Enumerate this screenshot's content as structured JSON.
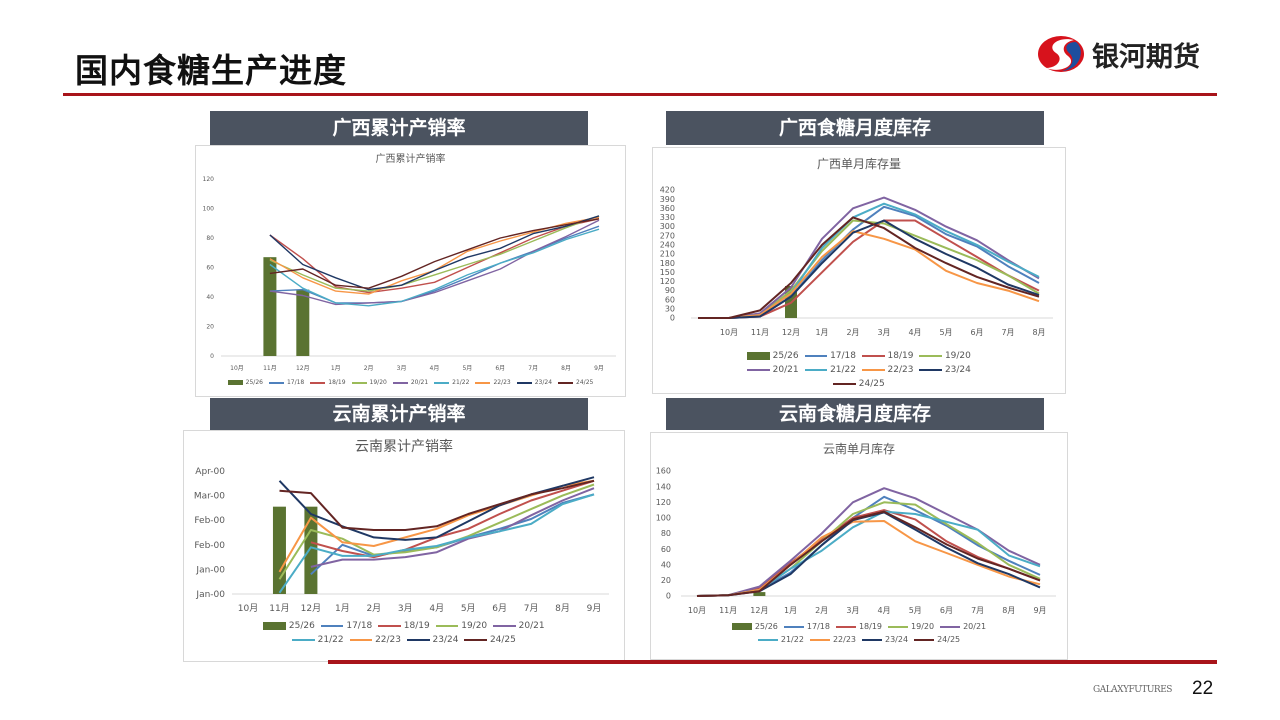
{
  "page": {
    "title": "国内食糖生产进度",
    "logo_text": "银河期货",
    "footer_brand": "GALAXYFUTURES",
    "page_number": "22"
  },
  "sections": [
    {
      "label": "广西累计产销率"
    },
    {
      "label": "广西食糖月度库存"
    },
    {
      "label": "云南累计产销率"
    },
    {
      "label": "云南食糖月度库存"
    }
  ],
  "colors": {
    "brand_red": "#a8141a",
    "header_bg": "#4b5360",
    "25/26": "#5a7331",
    "17/18": "#4f81bd",
    "18/19": "#c0504d",
    "19/20": "#9bbb59",
    "20/21": "#8064a2",
    "21/22": "#4bacc6",
    "22/23": "#f79646",
    "23/24": "#1f3864",
    "24/25": "#632523"
  },
  "chart_data": [
    {
      "type": "line",
      "title": "广西累计产销率",
      "categories": [
        "10月",
        "11月",
        "12月",
        "1月",
        "2月",
        "3月",
        "4月",
        "5月",
        "6月",
        "7月",
        "8月",
        "9月"
      ],
      "ylim": [
        0,
        120
      ],
      "yticks": [
        0,
        20,
        40,
        60,
        80,
        100,
        120
      ],
      "ytick_labels": [
        "0",
        "20",
        "40",
        "60",
        "80",
        "100",
        "120"
      ],
      "legend": "bottom",
      "bar_series": {
        "name": "25/26",
        "values": [
          null,
          67,
          45,
          null,
          null,
          null,
          null,
          null,
          null,
          null,
          null,
          null
        ]
      },
      "series": [
        {
          "name": "17/18",
          "values": [
            null,
            44,
            45,
            36,
            36,
            37,
            44,
            53,
            63,
            71,
            80,
            88
          ]
        },
        {
          "name": "18/19",
          "values": [
            null,
            82,
            66,
            47,
            43,
            46,
            50,
            60,
            70,
            80,
            88,
            93
          ]
        },
        {
          "name": "19/20",
          "values": [
            null,
            65,
            55,
            46,
            44,
            48,
            55,
            62,
            69,
            78,
            87,
            95
          ]
        },
        {
          "name": "20/21",
          "values": [
            null,
            44,
            41,
            35,
            36,
            37,
            43,
            51,
            59,
            71,
            81,
            92
          ]
        },
        {
          "name": "21/22",
          "values": [
            null,
            62,
            46,
            36,
            34,
            37,
            45,
            55,
            63,
            70,
            79,
            86
          ]
        },
        {
          "name": "22/23",
          "values": [
            null,
            66,
            53,
            44,
            42,
            51,
            58,
            71,
            78,
            84,
            90,
            94
          ]
        },
        {
          "name": "23/24",
          "values": [
            null,
            82,
            62,
            53,
            45,
            48,
            58,
            67,
            73,
            83,
            88,
            95
          ]
        },
        {
          "name": "24/25",
          "values": [
            null,
            56,
            59,
            48,
            46,
            54,
            64,
            72,
            80,
            85,
            89,
            93
          ]
        }
      ]
    },
    {
      "type": "line",
      "title": "广西单月库存量",
      "categories": [
        "",
        "10月",
        "11月",
        "12月",
        "1月",
        "2月",
        "3月",
        "4月",
        "5月",
        "6月",
        "7月",
        "8月"
      ],
      "ylim": [
        0,
        420
      ],
      "yticks": [
        0,
        30,
        60,
        90,
        120,
        150,
        180,
        210,
        240,
        270,
        300,
        330,
        360,
        390,
        420
      ],
      "ytick_labels": [
        "0",
        "30",
        "60",
        "90",
        "120",
        "150",
        "180",
        "210",
        "240",
        "270",
        "300",
        "330",
        "360",
        "390",
        "420"
      ],
      "legend": "bottom",
      "bar_series": {
        "name": "25/26",
        "values": [
          null,
          null,
          null,
          105,
          null,
          null,
          null,
          null,
          null,
          null,
          null,
          null
        ]
      },
      "series": [
        {
          "name": "17/18",
          "values": [
            0,
            0,
            5,
            70,
            190,
            290,
            365,
            335,
            275,
            235,
            170,
            115
          ]
        },
        {
          "name": "18/19",
          "values": [
            0,
            0,
            5,
            50,
            150,
            250,
            320,
            320,
            260,
            200,
            140,
            90
          ]
        },
        {
          "name": "19/20",
          "values": [
            0,
            0,
            10,
            90,
            220,
            320,
            310,
            270,
            230,
            190,
            140,
            80
          ]
        },
        {
          "name": "20/21",
          "values": [
            0,
            0,
            15,
            100,
            260,
            360,
            395,
            355,
            300,
            255,
            190,
            130
          ]
        },
        {
          "name": "21/22",
          "values": [
            0,
            0,
            10,
            80,
            230,
            330,
            375,
            340,
            285,
            240,
            185,
            135
          ]
        },
        {
          "name": "22/23",
          "values": [
            0,
            0,
            10,
            80,
            200,
            285,
            260,
            225,
            155,
            115,
            90,
            55
          ]
        },
        {
          "name": "23/24",
          "values": [
            0,
            0,
            5,
            70,
            180,
            280,
            320,
            260,
            210,
            165,
            110,
            75
          ]
        },
        {
          "name": "24/25",
          "values": [
            0,
            0,
            25,
            115,
            240,
            330,
            295,
            230,
            180,
            135,
            100,
            70
          ]
        }
      ]
    },
    {
      "type": "line",
      "title": "云南累计产销率",
      "categories": [
        "10月",
        "11月",
        "12月",
        "1月",
        "2月",
        "3月",
        "4月",
        "5月",
        "6月",
        "7月",
        "8月",
        "9月"
      ],
      "ylim": [
        0,
        100
      ],
      "yticks": [
        0,
        20,
        40,
        60,
        80,
        100
      ],
      "ytick_labels": [
        "Jan-00",
        "Jan-00",
        "Feb-00",
        "Feb-00",
        "Mar-00",
        "Apr-00"
      ],
      "legend": "bottom",
      "bar_series": {
        "name": "25/26",
        "values": [
          null,
          71,
          71,
          null,
          null,
          null,
          null,
          null,
          null,
          null,
          null,
          null
        ]
      },
      "series": [
        {
          "name": "17/18",
          "values": [
            null,
            null,
            16,
            40,
            31,
            35,
            38,
            46,
            53,
            61,
            74,
            81
          ]
        },
        {
          "name": "18/19",
          "values": [
            null,
            null,
            42,
            35,
            30,
            36,
            46,
            53,
            65,
            76,
            84,
            92
          ]
        },
        {
          "name": "19/20",
          "values": [
            null,
            12,
            52,
            45,
            32,
            34,
            38,
            47,
            58,
            69,
            80,
            89
          ]
        },
        {
          "name": "20/21",
          "values": [
            null,
            null,
            22,
            28,
            28,
            30,
            34,
            45,
            51,
            64,
            76,
            86
          ]
        },
        {
          "name": "21/22",
          "values": [
            null,
            1,
            38,
            31,
            31,
            36,
            39,
            46,
            51,
            57,
            73,
            81
          ]
        },
        {
          "name": "22/23",
          "values": [
            null,
            18,
            62,
            42,
            39,
            46,
            53,
            64,
            72,
            80,
            88,
            92
          ]
        },
        {
          "name": "23/24",
          "values": [
            null,
            92,
            65,
            55,
            46,
            44,
            46,
            59,
            72,
            81,
            88,
            95
          ]
        },
        {
          "name": "24/25",
          "values": [
            null,
            84,
            82,
            54,
            52,
            52,
            55,
            65,
            73,
            81,
            86,
            92
          ]
        }
      ]
    },
    {
      "type": "line",
      "title": "云南单月库存",
      "categories": [
        "10月",
        "11月",
        "12月",
        "1月",
        "2月",
        "3月",
        "4月",
        "5月",
        "6月",
        "7月",
        "8月",
        "9月"
      ],
      "ylim": [
        0,
        160
      ],
      "yticks": [
        0,
        20,
        40,
        60,
        80,
        100,
        120,
        140,
        160
      ],
      "ytick_labels": [
        "0",
        "20",
        "40",
        "60",
        "80",
        "100",
        "120",
        "140",
        "160"
      ],
      "legend": "bottom",
      "bar_series": {
        "name": "25/26",
        "values": [
          null,
          null,
          5,
          null,
          null,
          null,
          null,
          null,
          null,
          null,
          null,
          null
        ]
      },
      "series": [
        {
          "name": "17/18",
          "values": [
            0,
            1,
            8,
            30,
            65,
            100,
            127,
            110,
            90,
            65,
            45,
            27
          ]
        },
        {
          "name": "18/19",
          "values": [
            0,
            1,
            10,
            42,
            72,
            100,
            110,
            98,
            70,
            50,
            35,
            20
          ]
        },
        {
          "name": "19/20",
          "values": [
            0,
            1,
            8,
            35,
            70,
            105,
            120,
            117,
            92,
            68,
            40,
            22
          ]
        },
        {
          "name": "20/21",
          "values": [
            0,
            1,
            12,
            45,
            80,
            120,
            138,
            125,
            105,
            85,
            58,
            40
          ]
        },
        {
          "name": "21/22",
          "values": [
            0,
            1,
            8,
            35,
            58,
            88,
            108,
            105,
            95,
            85,
            52,
            38
          ]
        },
        {
          "name": "22/23",
          "values": [
            0,
            1,
            8,
            40,
            75,
            95,
            96,
            70,
            55,
            40,
            25,
            15
          ]
        },
        {
          "name": "23/24",
          "values": [
            0,
            1,
            6,
            28,
            65,
            97,
            107,
            85,
            62,
            42,
            28,
            11
          ]
        },
        {
          "name": "24/25",
          "values": [
            0,
            1,
            6,
            40,
            70,
            98,
            108,
            88,
            66,
            48,
            35,
            20
          ]
        }
      ]
    }
  ]
}
